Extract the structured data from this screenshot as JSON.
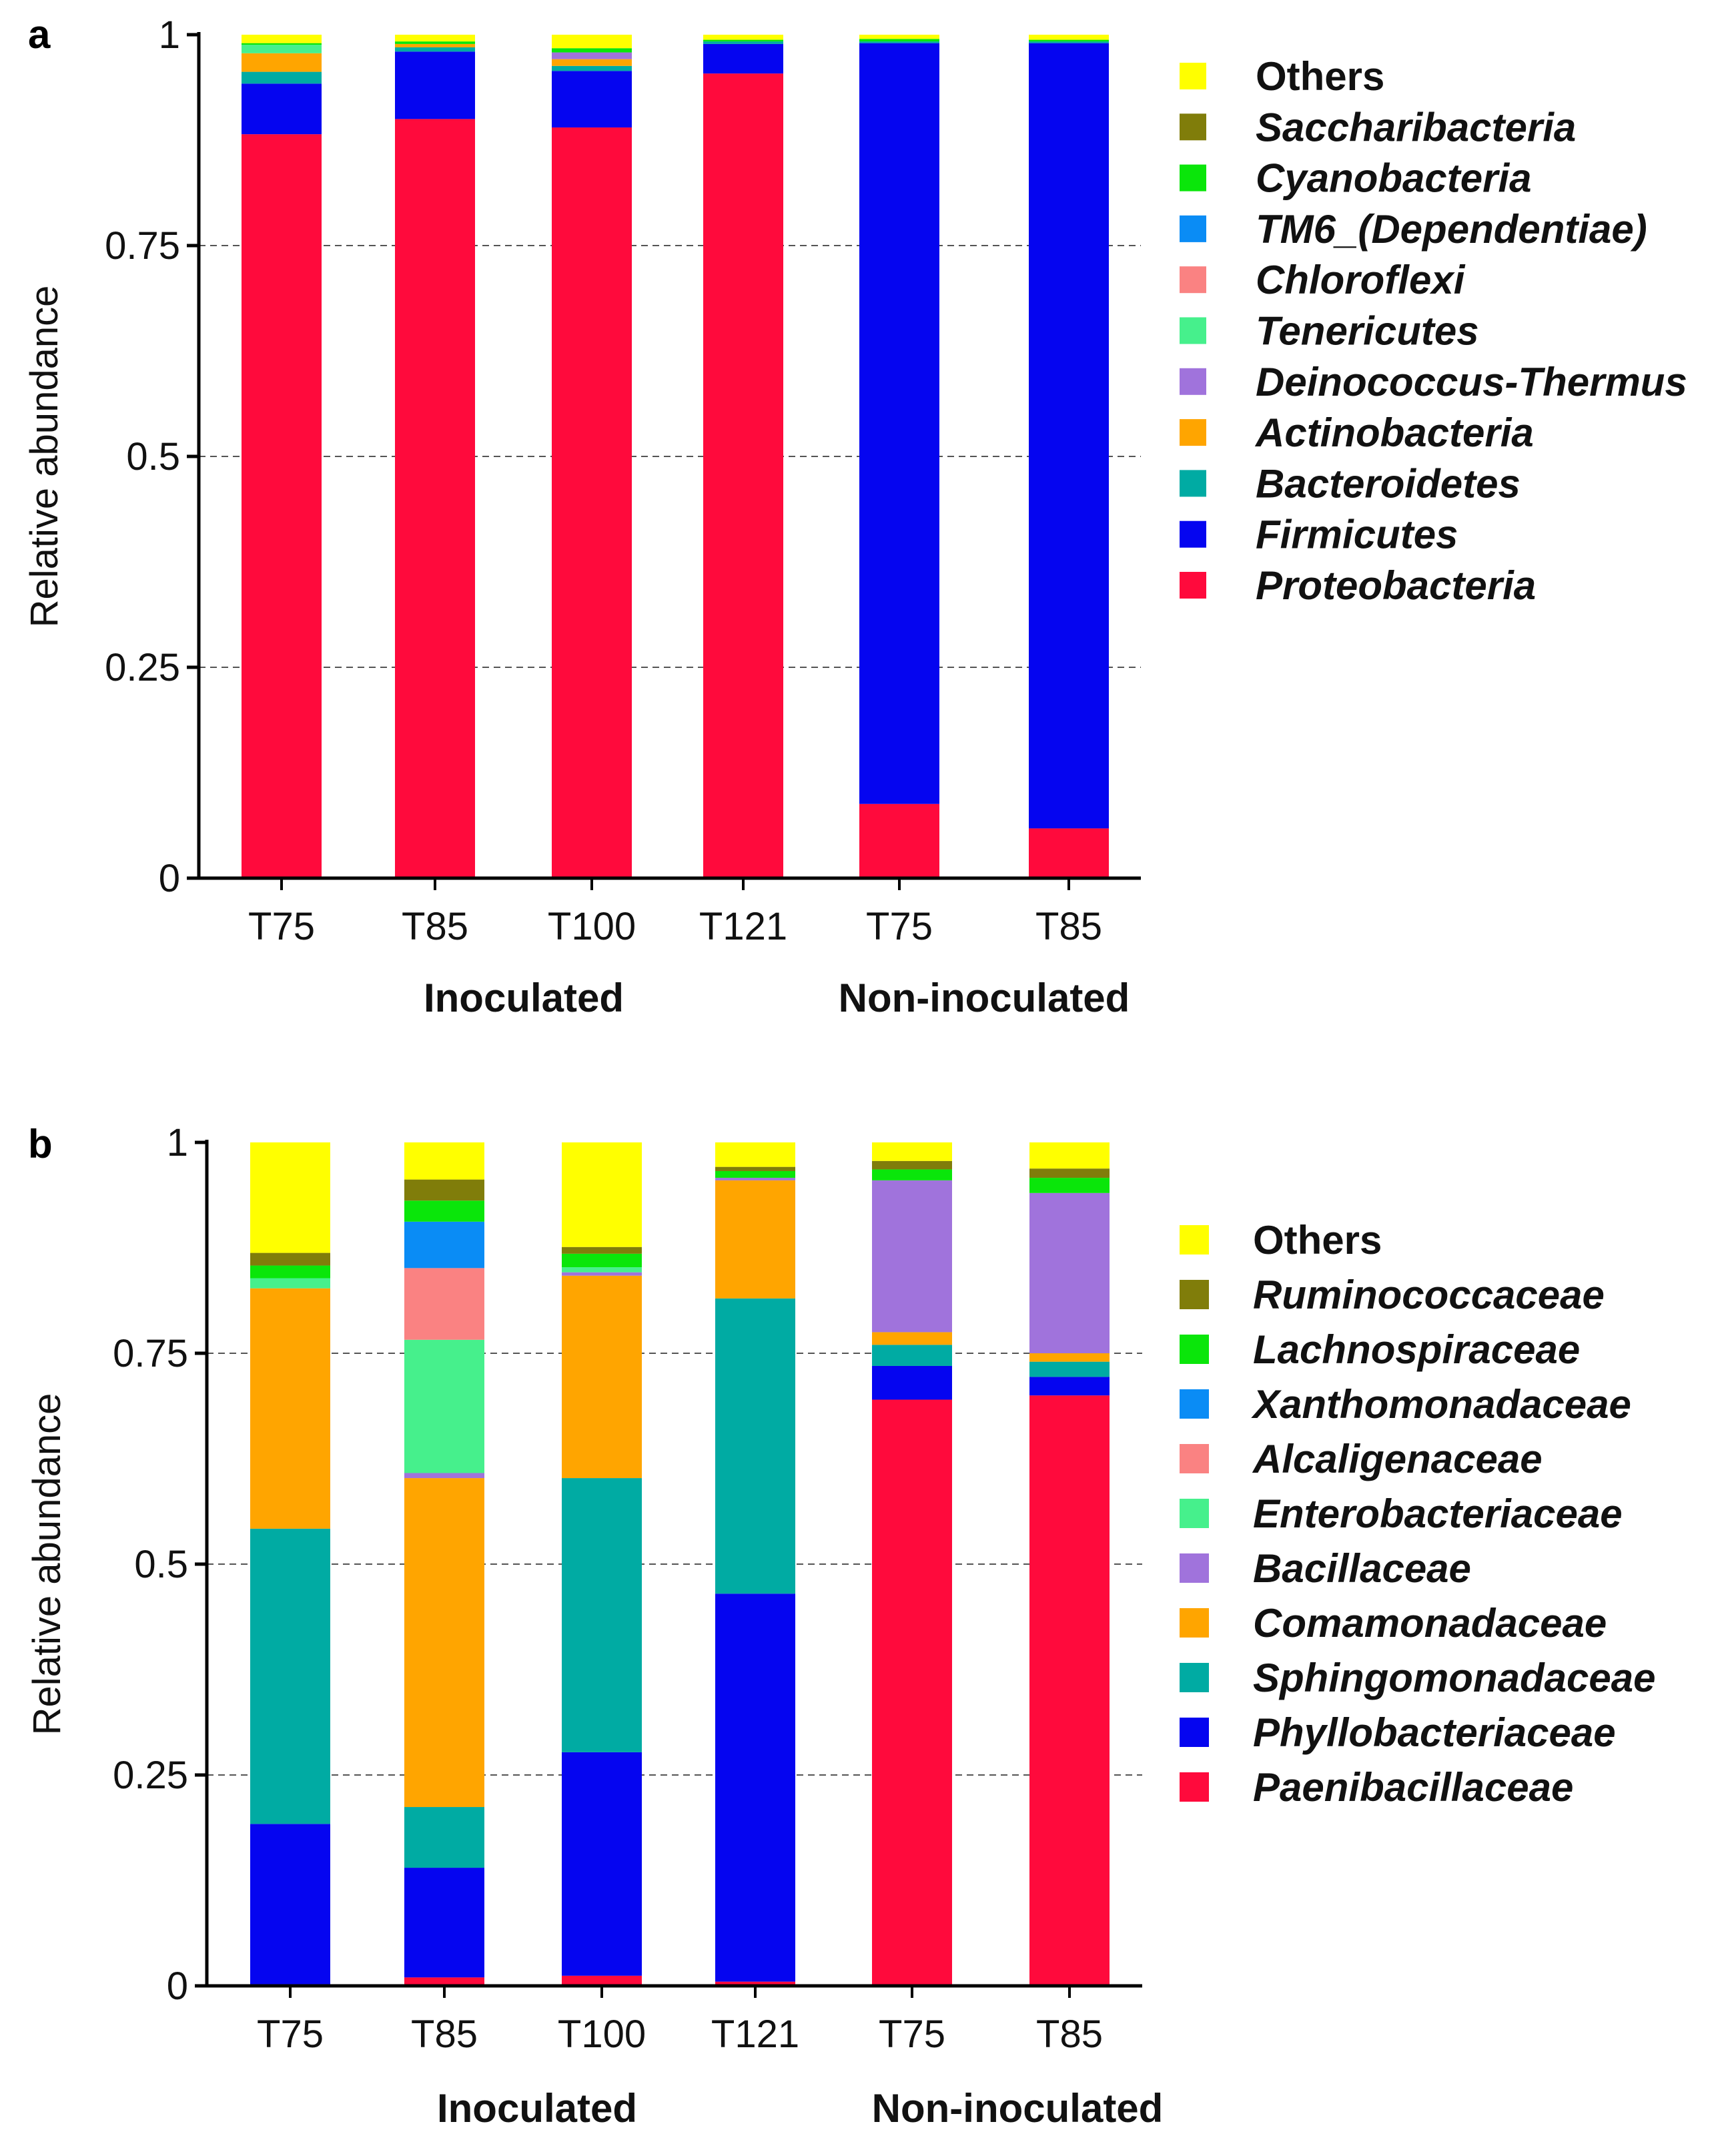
{
  "chart_data": [
    {
      "type": "bar",
      "stacked": true,
      "panel": "a",
      "ylabel": "Relative abundance",
      "ylim": [
        0,
        1
      ],
      "yticks": [
        "0",
        "0.25",
        "0.5",
        "0.75",
        "1"
      ],
      "gridlines": "dashed-horizontal",
      "categories": [
        "T75",
        "T85",
        "T100",
        "T121",
        "T75",
        "T85"
      ],
      "groups": [
        {
          "label": "Inoculated",
          "span": [
            0,
            3
          ]
        },
        {
          "label": "Non-inoculated",
          "span": [
            4,
            5
          ]
        }
      ],
      "legend_position": "right",
      "series": [
        {
          "name": "Proteobacteria",
          "italic": true,
          "color": "#ff0a3c",
          "values": [
            0.882,
            0.9,
            0.89,
            0.954,
            0.088,
            0.059
          ]
        },
        {
          "name": "Firmicutes",
          "italic": true,
          "color": "#0505f0",
          "values": [
            0.06,
            0.08,
            0.067,
            0.035,
            0.902,
            0.931
          ]
        },
        {
          "name": "Bacteroidetes",
          "italic": true,
          "color": "#00aba3",
          "values": [
            0.014,
            0.005,
            0.006,
            0.003,
            0.002,
            0.002
          ]
        },
        {
          "name": "Actinobacteria",
          "italic": true,
          "color": "#ffa500",
          "values": [
            0.022,
            0.004,
            0.008,
            0.0,
            0.0,
            0.0
          ]
        },
        {
          "name": "Deinococcus-Thermus",
          "italic": true,
          "color": "#a073dc",
          "values": [
            0.0,
            0.0,
            0.008,
            0.0,
            0.0,
            0.0
          ]
        },
        {
          "name": "Tenericutes",
          "italic": true,
          "color": "#46f08c",
          "values": [
            0.01,
            0.0,
            0.0,
            0.0,
            0.0,
            0.0
          ]
        },
        {
          "name": "Chloroflexi",
          "italic": true,
          "color": "#fa8282",
          "values": [
            0.0,
            0.0,
            0.0,
            0.0,
            0.0,
            0.0
          ]
        },
        {
          "name": "TM6_(Dependentiae)",
          "italic": true,
          "color": "#0a8cf5",
          "values": [
            0.0,
            0.0,
            0.0,
            0.0,
            0.0,
            0.0
          ]
        },
        {
          "name": "Cyanobacteria",
          "italic": true,
          "color": "#0ae60a",
          "values": [
            0.002,
            0.003,
            0.005,
            0.002,
            0.003,
            0.002
          ]
        },
        {
          "name": "Saccharibacteria",
          "italic": true,
          "color": "#807d0a",
          "values": [
            0.0,
            0.0,
            0.0,
            0.0,
            0.0,
            0.0
          ]
        },
        {
          "name": "Others",
          "italic": false,
          "color": "#ffff00",
          "values": [
            0.01,
            0.008,
            0.016,
            0.006,
            0.005,
            0.006
          ]
        }
      ]
    },
    {
      "type": "bar",
      "stacked": true,
      "panel": "b",
      "ylabel": "Relative abundance",
      "ylim": [
        0,
        1
      ],
      "yticks": [
        "0",
        "0.25",
        "0.5",
        "0.75",
        "1"
      ],
      "gridlines": "dashed-horizontal",
      "categories": [
        "T75",
        "T85",
        "T100",
        "T121",
        "T75",
        "T85"
      ],
      "groups": [
        {
          "label": "Inoculated",
          "span": [
            0,
            3
          ]
        },
        {
          "label": "Non-inoculated",
          "span": [
            4,
            5
          ]
        }
      ],
      "legend_position": "right",
      "series": [
        {
          "name": "Paenibacillaceae",
          "italic": true,
          "color": "#ff0a3c",
          "values": [
            0.002,
            0.01,
            0.012,
            0.005,
            0.695,
            0.7
          ]
        },
        {
          "name": "Phyllobacteriaceae",
          "italic": true,
          "color": "#0505f0",
          "values": [
            0.19,
            0.13,
            0.265,
            0.46,
            0.04,
            0.022
          ]
        },
        {
          "name": "Sphingomonadaceae",
          "italic": true,
          "color": "#00aba3",
          "values": [
            0.35,
            0.072,
            0.325,
            0.35,
            0.025,
            0.018
          ]
        },
        {
          "name": "Comamonadaceae",
          "italic": true,
          "color": "#ffa500",
          "values": [
            0.285,
            0.39,
            0.24,
            0.14,
            0.015,
            0.01
          ]
        },
        {
          "name": "Bacillaceae",
          "italic": true,
          "color": "#a073dc",
          "values": [
            0.0,
            0.006,
            0.004,
            0.003,
            0.18,
            0.19
          ]
        },
        {
          "name": "Enterobacteriaceae",
          "italic": true,
          "color": "#46f08c",
          "values": [
            0.012,
            0.158,
            0.006,
            0.0,
            0.0,
            0.0
          ]
        },
        {
          "name": "Alcaligenaceae",
          "italic": true,
          "color": "#fa8282",
          "values": [
            0.0,
            0.085,
            0.0,
            0.0,
            0.0,
            0.0
          ]
        },
        {
          "name": "Xanthomonadaceae",
          "italic": true,
          "color": "#0a8cf5",
          "values": [
            0.0,
            0.055,
            0.0,
            0.0,
            0.0,
            0.0
          ]
        },
        {
          "name": "Lachnospiraceae",
          "italic": true,
          "color": "#0ae60a",
          "values": [
            0.015,
            0.025,
            0.016,
            0.008,
            0.013,
            0.018
          ]
        },
        {
          "name": "Ruminococcaceae",
          "italic": true,
          "color": "#807d0a",
          "values": [
            0.015,
            0.025,
            0.008,
            0.005,
            0.01,
            0.011
          ]
        },
        {
          "name": "Others",
          "italic": false,
          "color": "#ffff00",
          "values": [
            0.131,
            0.044,
            0.124,
            0.029,
            0.022,
            0.031
          ]
        }
      ]
    }
  ]
}
